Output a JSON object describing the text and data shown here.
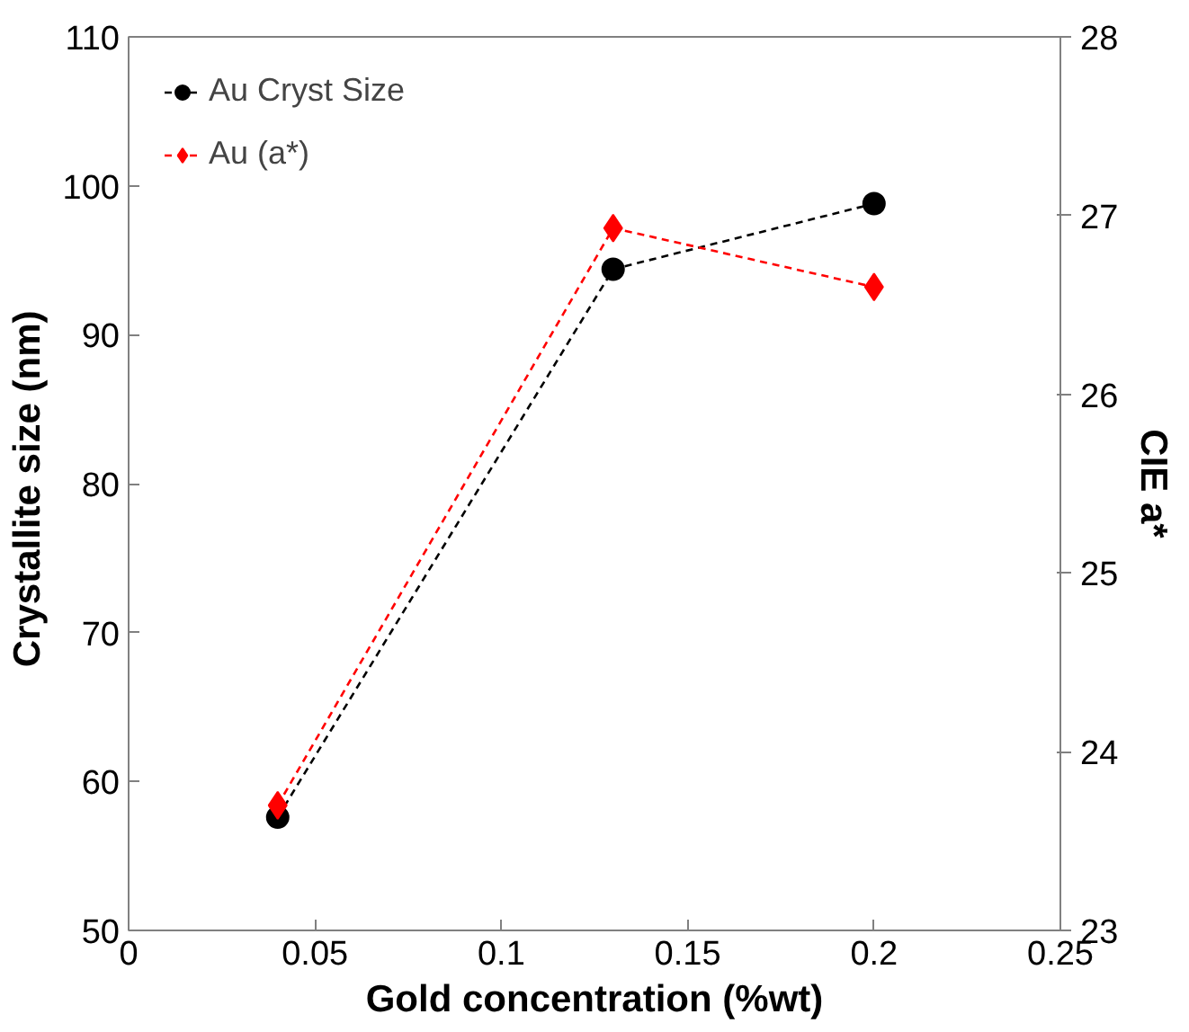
{
  "chart_data": {
    "type": "line",
    "xlabel": "Gold concentration (%wt)",
    "ylabel": "Crystallite size  (nm)",
    "y2label": "CIE a*",
    "x": [
      0.04,
      0.13,
      0.2
    ],
    "series": [
      {
        "name": "Au Cryst Size",
        "color": "#000000",
        "values": [
          57.6,
          94.4,
          98.8
        ],
        "marker": "circle"
      },
      {
        "name": "Au (a*)",
        "color": "#ff0000",
        "values": [
          23.7,
          26.93,
          26.6
        ],
        "marker": "diamond",
        "axis": "y2"
      }
    ],
    "xlim": [
      0,
      0.25
    ],
    "xticks": [
      0,
      0.05,
      0.1,
      0.15,
      0.2,
      0.25
    ],
    "ylim": [
      50,
      110
    ],
    "yticks": [
      50,
      60,
      70,
      80,
      90,
      100,
      110
    ],
    "y2lim": [
      23,
      28
    ],
    "y2ticks": [
      23,
      24,
      25,
      26,
      27,
      28
    ],
    "line_style": "dashed",
    "grid": false,
    "legend": "top left"
  }
}
